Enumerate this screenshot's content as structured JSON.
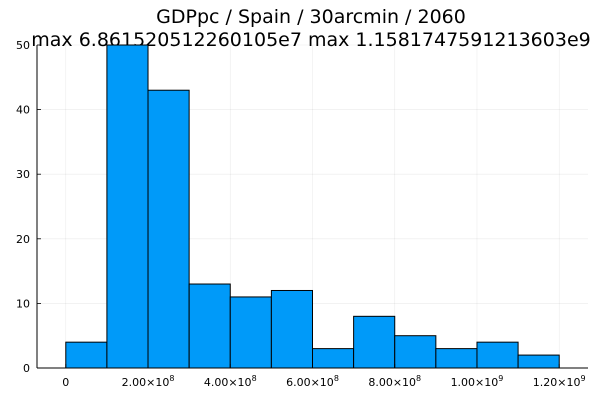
{
  "chart_data": {
    "type": "bar",
    "title": "GDPpc / Spain / 30arcmin / 2060",
    "subtitle": "max 6.861520512260105e7  max 1.1581747591213603e9",
    "xlabel": "",
    "ylabel": "",
    "bin_edges": [
      0,
      100000000,
      200000000,
      300000000,
      400000000,
      500000000,
      600000000,
      700000000,
      800000000,
      900000000,
      1000000000,
      1100000000,
      1200000000
    ],
    "values": [
      4,
      50,
      43,
      13,
      11,
      12,
      3,
      8,
      5,
      3,
      4,
      2
    ],
    "xlim": [
      -70000000,
      1270000000
    ],
    "ylim": [
      0,
      50
    ],
    "x_ticks": [
      {
        "value": 0,
        "mantissa": "0",
        "exp": ""
      },
      {
        "value": 200000000,
        "mantissa": "2.00×10",
        "exp": "8"
      },
      {
        "value": 400000000,
        "mantissa": "4.00×10",
        "exp": "8"
      },
      {
        "value": 600000000,
        "mantissa": "6.00×10",
        "exp": "8"
      },
      {
        "value": 800000000,
        "mantissa": "8.00×10",
        "exp": "8"
      },
      {
        "value": 1000000000,
        "mantissa": "1.00×10",
        "exp": "9"
      },
      {
        "value": 1200000000,
        "mantissa": "1.20×10",
        "exp": "9"
      }
    ],
    "y_ticks": [
      0,
      10,
      20,
      30,
      40,
      50
    ],
    "grid": true,
    "legend": "none",
    "bar_color": "#009AF9",
    "edge_color": "#000000"
  }
}
